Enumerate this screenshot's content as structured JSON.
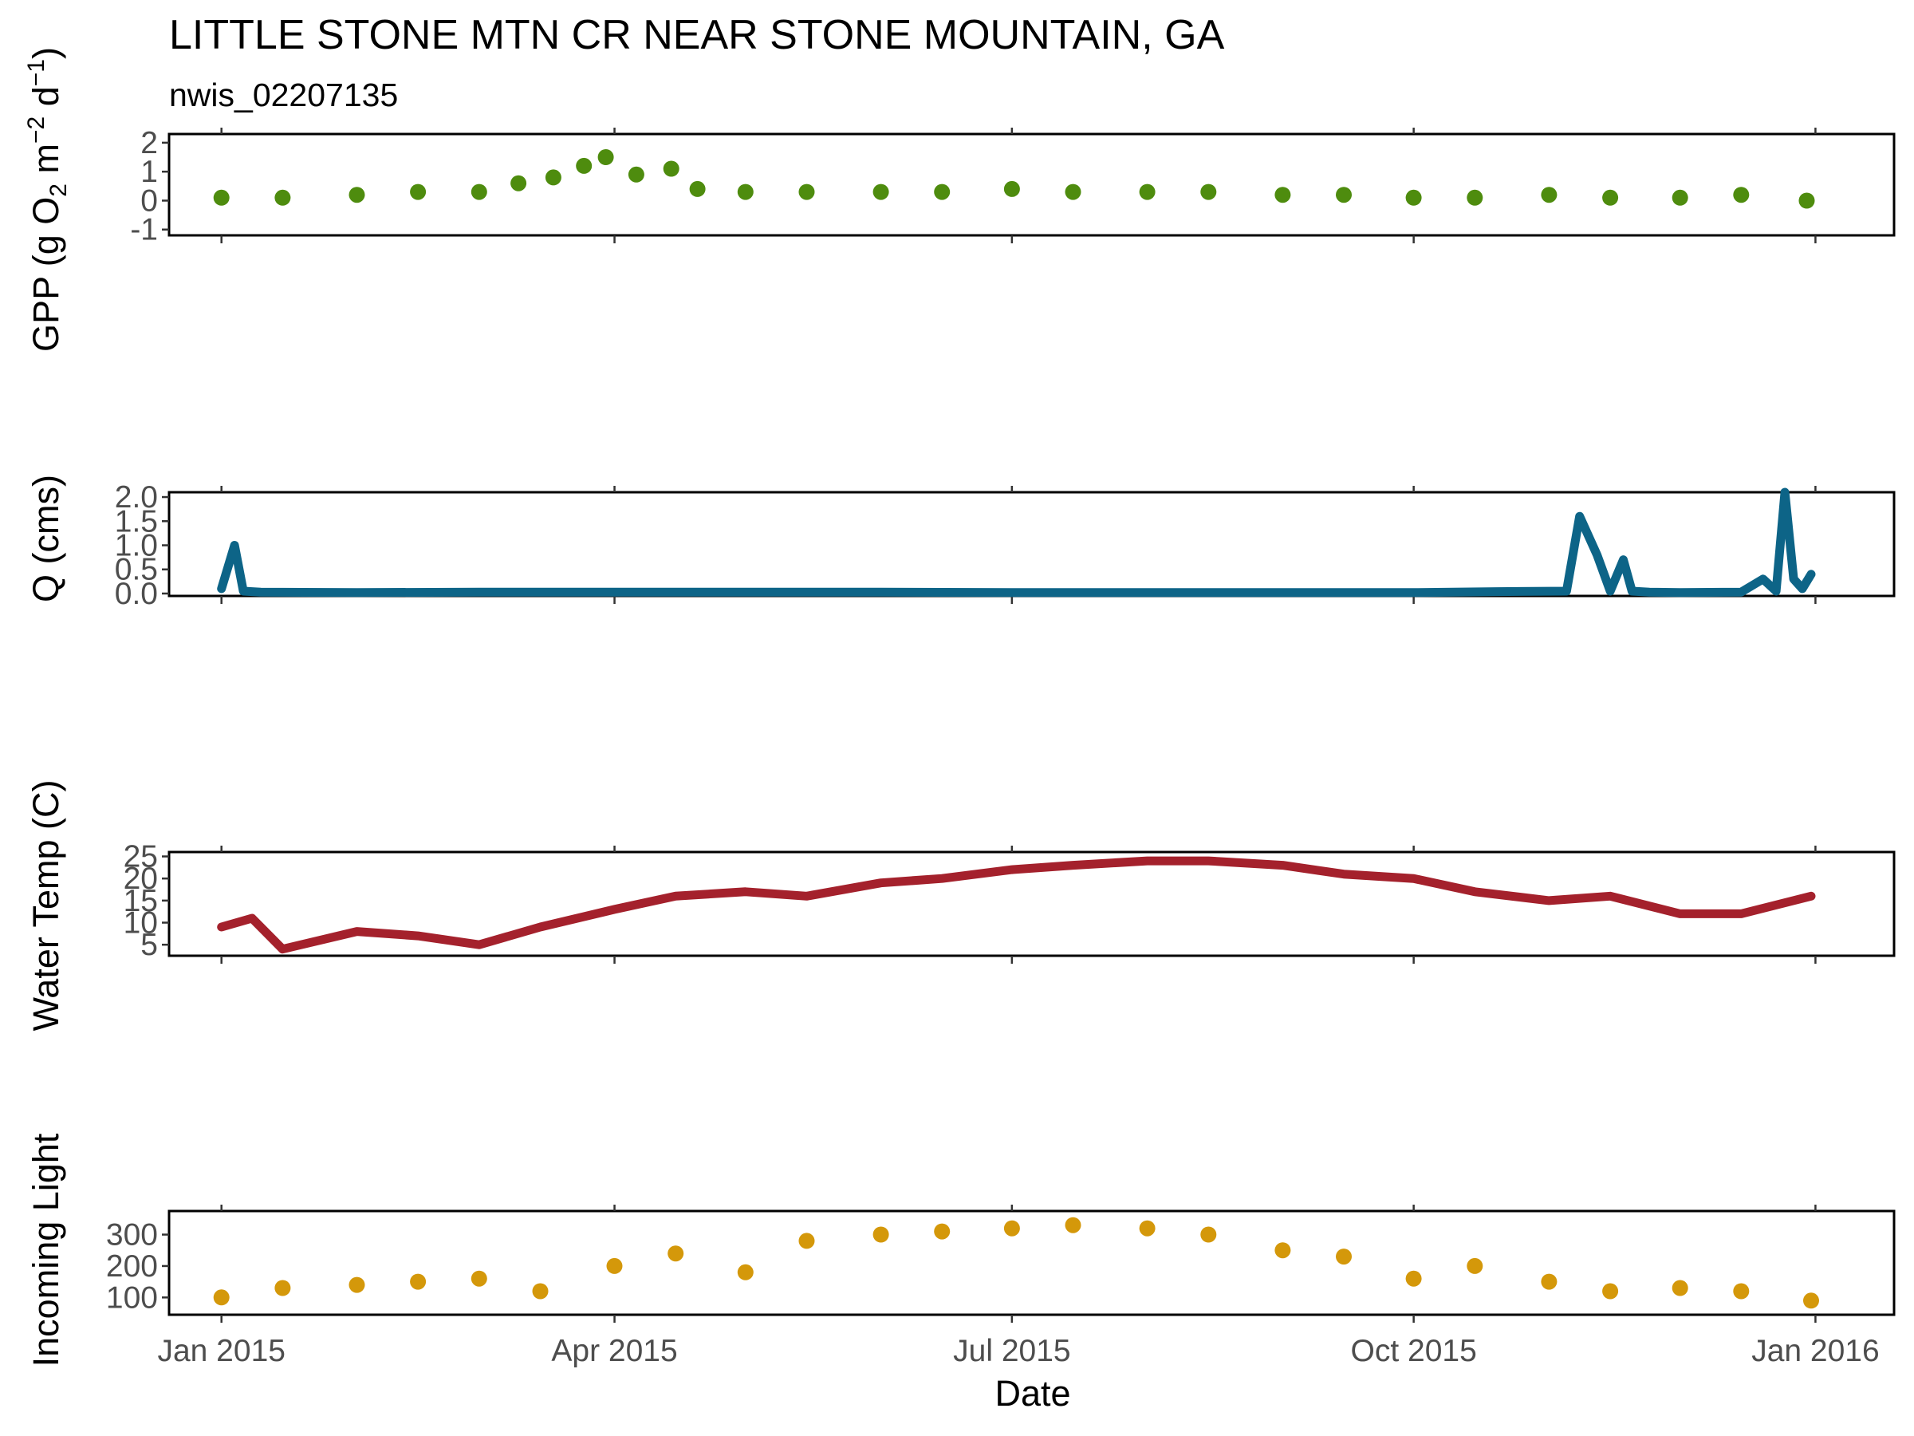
{
  "chart_data": {
    "title": "LITTLE STONE MTN CR NEAR STONE MOUNTAIN, GA",
    "subtitle": "nwis_02207135",
    "xlabel": "Date",
    "x_ticks": [
      "Jan 2015",
      "Apr 2015",
      "Jul 2015",
      "Oct 2015",
      "Jan 2016"
    ],
    "x_tick_dates": [
      "2015-01-01",
      "2015-04-01",
      "2015-07-01",
      "2015-10-01",
      "2016-01-01"
    ],
    "xlim": [
      "2014-12-20",
      "2016-01-19"
    ],
    "grid": false,
    "panels": [
      {
        "type": "scatter",
        "ylabel": "GPP (g O2 m-2 d-1)",
        "ylim": [
          -1.2,
          2.3
        ],
        "y_ticks": [
          "2",
          "1",
          "0",
          "-1"
        ],
        "y_tick_values": [
          2,
          1,
          0,
          -1
        ],
        "color": "#4e8c0e",
        "x": [
          "2015-01-01",
          "2015-01-15",
          "2015-02-01",
          "2015-02-15",
          "2015-03-01",
          "2015-03-10",
          "2015-03-18",
          "2015-03-25",
          "2015-03-30",
          "2015-04-06",
          "2015-04-14",
          "2015-04-20",
          "2015-05-01",
          "2015-05-15",
          "2015-06-01",
          "2015-06-15",
          "2015-07-01",
          "2015-07-15",
          "2015-08-01",
          "2015-08-15",
          "2015-09-01",
          "2015-09-15",
          "2015-10-01",
          "2015-10-15",
          "2015-11-01",
          "2015-11-15",
          "2015-12-01",
          "2015-12-15",
          "2015-12-30"
        ],
        "y": [
          0.1,
          0.1,
          0.2,
          0.3,
          0.3,
          0.6,
          0.8,
          1.2,
          1.5,
          0.9,
          1.1,
          0.4,
          0.3,
          0.3,
          0.3,
          0.3,
          0.4,
          0.3,
          0.3,
          0.3,
          0.2,
          0.2,
          0.1,
          0.1,
          0.2,
          0.1,
          0.1,
          0.2,
          0.0
        ]
      },
      {
        "type": "line",
        "ylabel": "Q (cms)",
        "ylim": [
          -0.05,
          2.1
        ],
        "y_ticks": [
          "2.0",
          "1.5",
          "1.0",
          "0.5",
          "0.0"
        ],
        "y_tick_values": [
          2.0,
          1.5,
          1.0,
          0.5,
          0.0
        ],
        "color": "#0d6487",
        "x": [
          "2015-01-01",
          "2015-01-04",
          "2015-01-06",
          "2015-01-10",
          "2015-02-01",
          "2015-03-01",
          "2015-04-01",
          "2015-05-01",
          "2015-06-01",
          "2015-07-01",
          "2015-08-01",
          "2015-09-01",
          "2015-10-01",
          "2015-10-20",
          "2015-11-05",
          "2015-11-08",
          "2015-11-12",
          "2015-11-15",
          "2015-11-18",
          "2015-11-20",
          "2015-11-24",
          "2015-12-01",
          "2015-12-15",
          "2015-12-20",
          "2015-12-23",
          "2015-12-25",
          "2015-12-27",
          "2015-12-29",
          "2015-12-31"
        ],
        "y": [
          0.1,
          1.0,
          0.05,
          0.03,
          0.02,
          0.03,
          0.03,
          0.03,
          0.03,
          0.02,
          0.02,
          0.02,
          0.02,
          0.04,
          0.05,
          1.6,
          0.8,
          0.05,
          0.7,
          0.05,
          0.03,
          0.02,
          0.03,
          0.3,
          0.05,
          2.1,
          0.3,
          0.1,
          0.4
        ]
      },
      {
        "type": "line",
        "ylabel": "Water Temp (C)",
        "ylim": [
          2.5,
          26
        ],
        "y_ticks": [
          "25",
          "20",
          "15",
          "10",
          "5"
        ],
        "y_tick_values": [
          25,
          20,
          15,
          10,
          5
        ],
        "color": "#a4212c",
        "x": [
          "2015-01-01",
          "2015-01-08",
          "2015-01-15",
          "2015-02-01",
          "2015-02-15",
          "2015-03-01",
          "2015-03-15",
          "2015-04-01",
          "2015-04-15",
          "2015-05-01",
          "2015-05-15",
          "2015-06-01",
          "2015-06-15",
          "2015-07-01",
          "2015-07-15",
          "2015-08-01",
          "2015-08-15",
          "2015-09-01",
          "2015-09-15",
          "2015-10-01",
          "2015-10-15",
          "2015-11-01",
          "2015-11-15",
          "2015-12-01",
          "2015-12-15",
          "2015-12-31"
        ],
        "y": [
          9,
          11,
          4,
          8,
          7,
          5,
          9,
          13,
          16,
          17,
          16,
          19,
          20,
          22,
          23,
          24,
          24,
          23,
          21,
          20,
          17,
          15,
          16,
          12,
          12,
          16
        ]
      },
      {
        "type": "scatter",
        "ylabel": "Incoming Light",
        "ylim": [
          45,
          375
        ],
        "y_ticks": [
          "300",
          "200",
          "100"
        ],
        "y_tick_values": [
          300,
          200,
          100
        ],
        "color": "#d4980a",
        "x": [
          "2015-01-01",
          "2015-01-15",
          "2015-02-01",
          "2015-02-15",
          "2015-03-01",
          "2015-03-15",
          "2015-04-01",
          "2015-04-15",
          "2015-05-01",
          "2015-05-15",
          "2015-06-01",
          "2015-06-15",
          "2015-07-01",
          "2015-07-15",
          "2015-08-01",
          "2015-08-15",
          "2015-09-01",
          "2015-09-15",
          "2015-10-01",
          "2015-10-15",
          "2015-11-01",
          "2015-11-15",
          "2015-12-01",
          "2015-12-15",
          "2015-12-31"
        ],
        "y": [
          100,
          130,
          140,
          150,
          160,
          120,
          200,
          240,
          180,
          280,
          300,
          310,
          320,
          330,
          320,
          300,
          250,
          230,
          160,
          200,
          150,
          120,
          130,
          120,
          90
        ]
      }
    ]
  }
}
